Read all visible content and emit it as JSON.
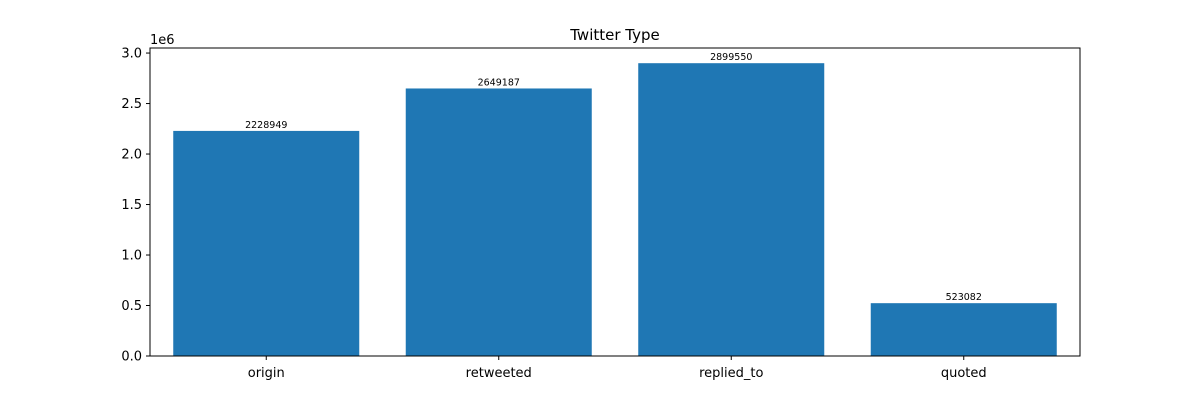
{
  "chart_data": {
    "type": "bar",
    "title": "Twitter Type",
    "xlabel": "",
    "ylabel": "",
    "categories": [
      "origin",
      "retweeted",
      "replied_to",
      "quoted"
    ],
    "values": [
      2228949,
      2649187,
      2899550,
      523082
    ],
    "data_labels": [
      "2228949",
      "2649187",
      "2899550",
      "523082"
    ],
    "ylim": [
      0,
      3050000
    ],
    "yticks": [
      0,
      500000,
      1000000,
      1500000,
      2000000,
      2500000,
      3000000
    ],
    "ytick_labels": [
      "0.0",
      "0.5",
      "1.0",
      "1.5",
      "2.0",
      "2.5",
      "3.0"
    ],
    "y_offset_label": "1e6",
    "bar_color": "#1f77b4",
    "grid": false
  }
}
